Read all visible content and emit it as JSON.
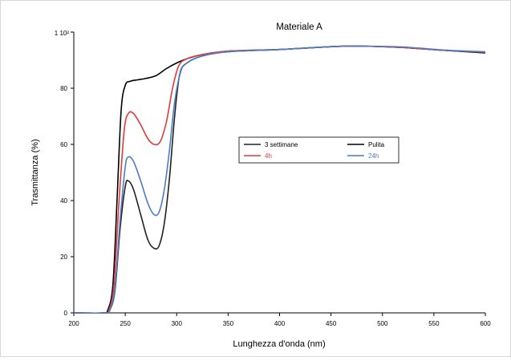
{
  "chart_data": {
    "type": "line",
    "title": "Materiale A",
    "xlabel": "Lunghezza d'onda (nm)",
    "ylabel": "Trasmittanza (%)",
    "xlim": [
      200,
      600
    ],
    "ylim": [
      0,
      100
    ],
    "x_ticks": [
      200,
      250,
      300,
      350,
      400,
      450,
      500,
      550,
      600
    ],
    "y_ticks": [
      0,
      20,
      40,
      60,
      80
    ],
    "y_top_label": "1 10²",
    "grid": false,
    "legend_placement": "center",
    "series": [
      {
        "name": "Pulita",
        "color": "#000000",
        "points": [
          [
            200,
            0
          ],
          [
            228,
            0
          ],
          [
            233,
            1
          ],
          [
            238,
            10
          ],
          [
            242,
            40
          ],
          [
            246,
            72
          ],
          [
            250,
            81
          ],
          [
            255,
            82.5
          ],
          [
            262,
            83
          ],
          [
            270,
            83.5
          ],
          [
            280,
            84.5
          ],
          [
            290,
            87
          ],
          [
            300,
            89
          ],
          [
            310,
            90.5
          ],
          [
            325,
            92
          ],
          [
            350,
            93.2
          ],
          [
            400,
            93.8
          ],
          [
            450,
            94.8
          ],
          [
            480,
            95
          ],
          [
            520,
            94.5
          ],
          [
            560,
            93.5
          ],
          [
            600,
            92.6
          ]
        ]
      },
      {
        "name": "3 settimane",
        "color": "#222222",
        "points": [
          [
            200,
            0
          ],
          [
            230,
            0
          ],
          [
            235,
            1
          ],
          [
            240,
            8
          ],
          [
            245,
            30
          ],
          [
            250,
            45
          ],
          [
            253,
            47
          ],
          [
            258,
            44
          ],
          [
            265,
            35
          ],
          [
            272,
            26
          ],
          [
            278,
            23
          ],
          [
            283,
            24
          ],
          [
            288,
            32
          ],
          [
            293,
            48
          ],
          [
            298,
            70
          ],
          [
            303,
            85
          ],
          [
            310,
            89
          ],
          [
            325,
            91.5
          ],
          [
            350,
            93
          ],
          [
            400,
            93.8
          ],
          [
            450,
            94.8
          ],
          [
            480,
            95
          ],
          [
            520,
            94.5
          ],
          [
            560,
            93.5
          ],
          [
            600,
            92.8
          ]
        ]
      },
      {
        "name": "4h",
        "color": "#e03a3a",
        "points": [
          [
            200,
            0
          ],
          [
            229,
            0
          ],
          [
            234,
            1
          ],
          [
            239,
            10
          ],
          [
            244,
            40
          ],
          [
            249,
            65
          ],
          [
            253,
            71
          ],
          [
            258,
            71
          ],
          [
            265,
            67
          ],
          [
            272,
            62
          ],
          [
            278,
            60
          ],
          [
            284,
            61
          ],
          [
            290,
            68
          ],
          [
            296,
            80
          ],
          [
            302,
            88
          ],
          [
            310,
            90.5
          ],
          [
            325,
            92
          ],
          [
            350,
            93.2
          ],
          [
            400,
            93.8
          ],
          [
            450,
            94.8
          ],
          [
            480,
            95
          ],
          [
            520,
            94.5
          ],
          [
            560,
            93.5
          ],
          [
            600,
            92.8
          ]
        ]
      },
      {
        "name": "24h",
        "color": "#4a7cc7",
        "points": [
          [
            200,
            0
          ],
          [
            230,
            0
          ],
          [
            235,
            1
          ],
          [
            240,
            9
          ],
          [
            245,
            33
          ],
          [
            250,
            52
          ],
          [
            253,
            55.5
          ],
          [
            258,
            54
          ],
          [
            265,
            47
          ],
          [
            272,
            39
          ],
          [
            278,
            35
          ],
          [
            283,
            36
          ],
          [
            288,
            44
          ],
          [
            293,
            58
          ],
          [
            298,
            75
          ],
          [
            304,
            86
          ],
          [
            310,
            89
          ],
          [
            325,
            91.5
          ],
          [
            350,
            93
          ],
          [
            400,
            93.8
          ],
          [
            450,
            94.8
          ],
          [
            480,
            95
          ],
          [
            520,
            94.7
          ],
          [
            560,
            93.6
          ],
          [
            600,
            93
          ]
        ]
      }
    ],
    "legend_entries": [
      "3 settimane",
      "Pulita",
      "4h",
      "24h"
    ]
  }
}
